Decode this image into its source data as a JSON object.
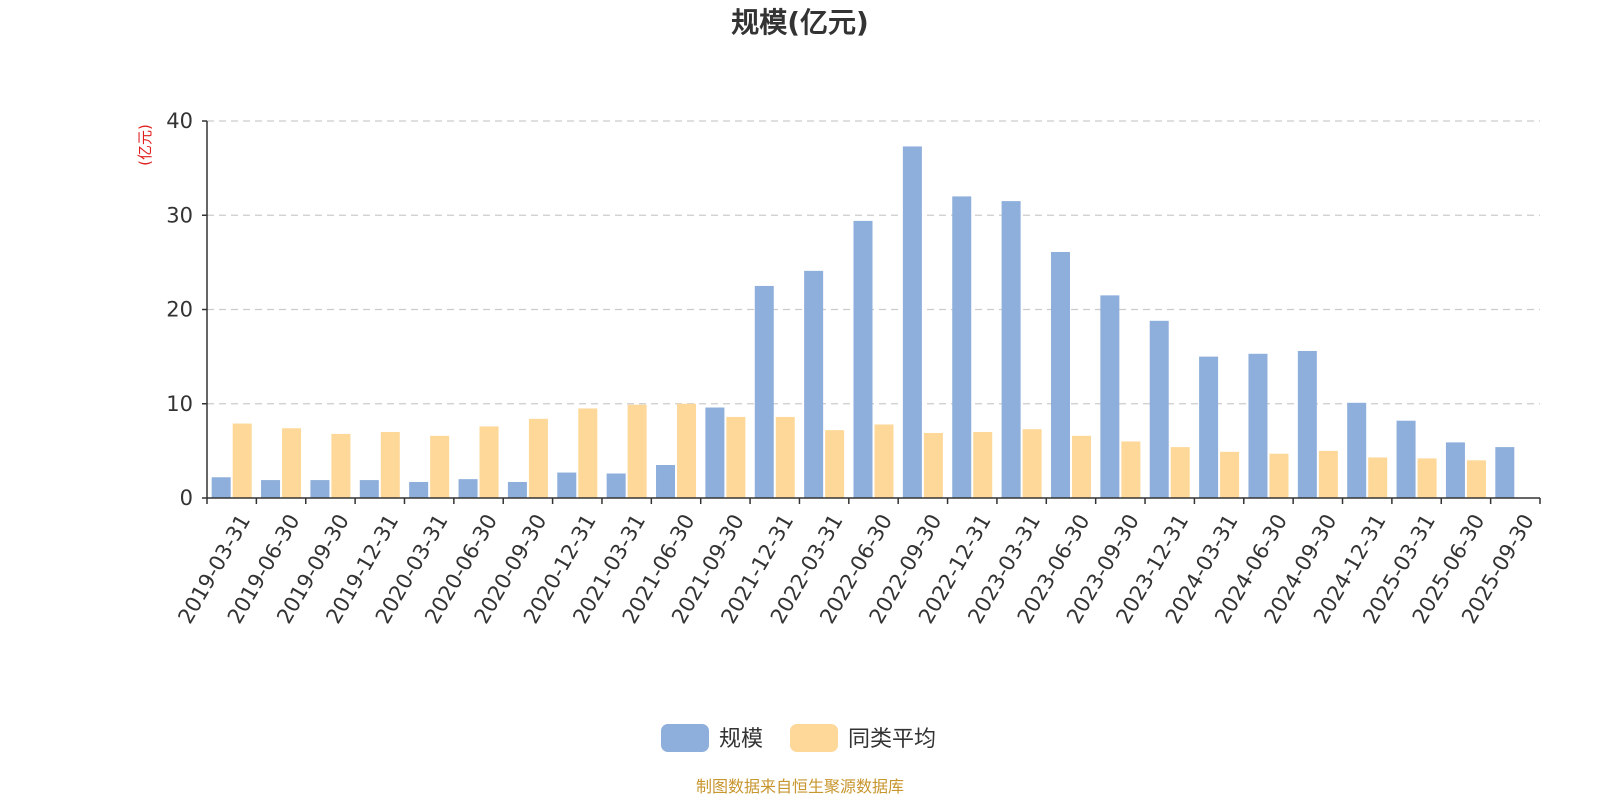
{
  "chart_data": {
    "type": "bar",
    "title": "规模(亿元)",
    "ylabel": "(亿元)",
    "xlabel": "",
    "ylim": [
      0,
      40
    ],
    "yticks": [
      0,
      10,
      20,
      30,
      40
    ],
    "grid": true,
    "categories": [
      "2019-03-31",
      "2019-06-30",
      "2019-09-30",
      "2019-12-31",
      "2020-03-31",
      "2020-06-30",
      "2020-09-30",
      "2020-12-31",
      "2021-03-31",
      "2021-06-30",
      "2021-09-30",
      "2021-12-31",
      "2022-03-31",
      "2022-06-30",
      "2022-09-30",
      "2022-12-31",
      "2023-03-31",
      "2023-06-30",
      "2023-09-30",
      "2023-12-31",
      "2024-03-31",
      "2024-06-30",
      "2024-09-30",
      "2024-12-31",
      "2025-03-31",
      "2025-06-30",
      "2025-09-30"
    ],
    "series": [
      {
        "name": "规模",
        "color": "#8eaedb",
        "values": [
          2.2,
          1.9,
          1.9,
          1.9,
          1.7,
          2.0,
          1.7,
          2.7,
          2.6,
          3.5,
          9.6,
          22.5,
          24.1,
          29.4,
          37.3,
          32.0,
          31.5,
          26.1,
          21.5,
          18.8,
          15.0,
          15.3,
          15.6,
          10.1,
          8.2,
          5.9,
          5.4
        ]
      },
      {
        "name": "同类平均",
        "color": "#fdd898",
        "values": [
          7.9,
          7.4,
          6.8,
          7.0,
          6.6,
          7.6,
          8.4,
          9.5,
          9.9,
          10.0,
          8.6,
          8.6,
          7.2,
          7.8,
          6.9,
          7.0,
          7.3,
          6.6,
          6.0,
          5.4,
          4.9,
          4.7,
          5.0,
          4.3,
          4.2,
          4.0,
          null
        ]
      }
    ],
    "legend_position": "bottom-center"
  },
  "unit_color": "#e02020",
  "source_text": "制图数据来自恒生聚源数据库",
  "source_color": "#c8962e"
}
